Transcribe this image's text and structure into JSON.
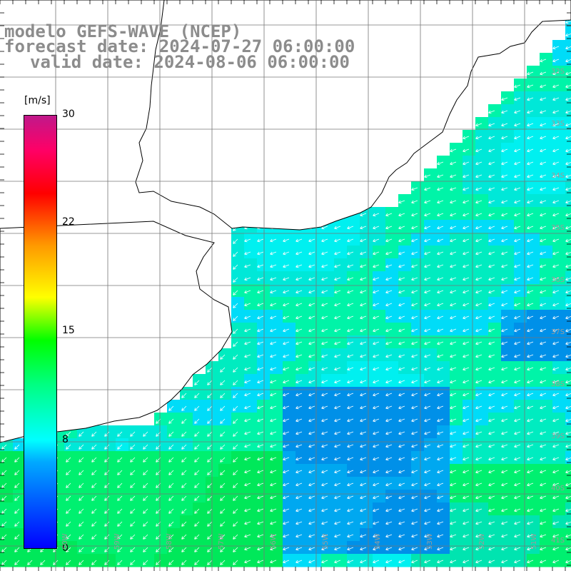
{
  "title": {
    "model": "modelo GEFS-WAVE (NCEP)",
    "forecast": "forecast date: 2024-07-27 06:00:00",
    "valid": "valid date: 2024-08-06 06:00:00"
  },
  "colorbar": {
    "unit": "[m/s]",
    "ticks": [
      "30",
      "22",
      "15",
      "8",
      "0"
    ],
    "tick_values": [
      30,
      22,
      15,
      8,
      0
    ],
    "colors": [
      "#0000ff",
      "#00aaff",
      "#00ffff",
      "#00ff80",
      "#00ff00",
      "#ffff00",
      "#ff9900",
      "#ff0000",
      "#ff0066",
      "#c0188a"
    ]
  },
  "map": {
    "land_color": "#ffffff",
    "grid": true,
    "grid_color": "#000000",
    "arrow_color": "#ffffff",
    "lat_labels": [
      "32S",
      "33S",
      "34S",
      "35S",
      "36S",
      "37S",
      "38S",
      "39S",
      "40S",
      "41S"
    ],
    "lon_labels": [
      "60W",
      "59W",
      "58W",
      "57W",
      "56W",
      "55W",
      "54W",
      "53W",
      "52W",
      "51W",
      "50W"
    ]
  }
}
